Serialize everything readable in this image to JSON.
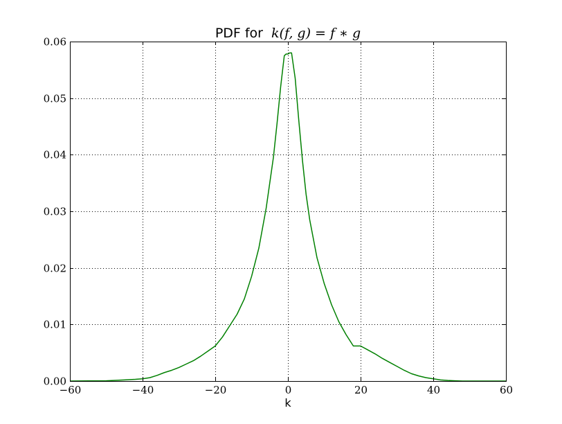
{
  "chart_data": {
    "type": "line",
    "title": {
      "prefix": "PDF for",
      "math": "k(f, g) = f ∗ g"
    },
    "xlabel": "k",
    "ylabel": "",
    "xlim": [
      -60,
      60
    ],
    "ylim": [
      0,
      0.06
    ],
    "x_ticks": [
      -60,
      -40,
      -20,
      0,
      20,
      40,
      60
    ],
    "x_tick_labels": [
      "−60",
      "−40",
      "−20",
      "0",
      "20",
      "40",
      "60"
    ],
    "y_ticks": [
      0,
      0.01,
      0.02,
      0.03,
      0.04,
      0.05,
      0.06
    ],
    "y_tick_labels": [
      "0.00",
      "0.01",
      "0.02",
      "0.03",
      "0.04",
      "0.05",
      "0.06"
    ],
    "grid": true,
    "series": [
      {
        "color": "#008000",
        "x": [
          -60,
          -50,
          -45,
          -42,
          -40,
          -38,
          -36,
          -34,
          -32,
          -30,
          -28,
          -26,
          -24,
          -22,
          -20,
          -18,
          -16,
          -14,
          -12,
          -10,
          -8,
          -6,
          -4,
          -3,
          -2,
          -1,
          -0.5,
          0,
          0.5,
          1,
          2,
          3,
          4,
          5,
          6,
          8,
          10,
          12,
          14,
          16,
          18,
          20,
          22,
          24,
          26,
          28,
          30,
          32,
          34,
          36,
          38,
          40,
          42,
          44,
          46,
          48,
          50,
          55,
          60
        ],
        "y": [
          0,
          5e-05,
          0.0002,
          0.0003,
          0.0004,
          0.0006,
          0.001,
          0.0015,
          0.0019,
          0.0024,
          0.003,
          0.0036,
          0.0044,
          0.0053,
          0.0062,
          0.0078,
          0.0098,
          0.0118,
          0.0145,
          0.0185,
          0.0235,
          0.0305,
          0.0395,
          0.0455,
          0.052,
          0.0575,
          0.0578,
          0.0578,
          0.058,
          0.058,
          0.0535,
          0.046,
          0.039,
          0.033,
          0.0285,
          0.0218,
          0.0172,
          0.0135,
          0.0105,
          0.0082,
          0.0062,
          0.0062,
          0.0055,
          0.0048,
          0.004,
          0.0033,
          0.0026,
          0.0019,
          0.0013,
          0.0009,
          0.0006,
          0.0004,
          0.0002,
          0.0001,
          5e-05,
          0,
          0,
          0,
          0
        ]
      }
    ]
  }
}
